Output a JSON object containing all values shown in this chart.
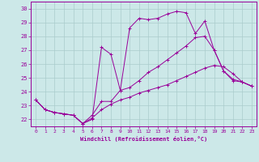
{
  "xlabel": "Windchill (Refroidissement éolien,°C)",
  "xlim": [
    -0.5,
    23.5
  ],
  "ylim": [
    21.5,
    30.5
  ],
  "yticks": [
    22,
    23,
    24,
    25,
    26,
    27,
    28,
    29,
    30
  ],
  "xticks": [
    0,
    1,
    2,
    3,
    4,
    5,
    6,
    7,
    8,
    9,
    10,
    11,
    12,
    13,
    14,
    15,
    16,
    17,
    18,
    19,
    20,
    21,
    22,
    23
  ],
  "bg_color": "#cce8e8",
  "line_color": "#990099",
  "grid_color": "#aacccc",
  "line1_x": [
    0,
    1,
    2,
    3,
    4,
    5,
    6,
    7,
    8,
    9,
    10,
    11,
    12,
    13,
    14,
    15,
    16,
    17,
    18,
    19,
    20,
    21,
    22,
    23
  ],
  "line1_y": [
    23.4,
    22.7,
    22.5,
    22.4,
    22.3,
    21.7,
    22.0,
    27.2,
    26.7,
    24.1,
    28.6,
    29.3,
    29.2,
    29.3,
    29.6,
    29.8,
    29.7,
    28.2,
    29.1,
    27.0,
    25.5,
    24.8,
    24.7,
    24.4
  ],
  "line2_x": [
    0,
    1,
    2,
    3,
    4,
    5,
    6,
    7,
    8,
    9,
    10,
    11,
    12,
    13,
    14,
    15,
    16,
    17,
    18,
    19,
    20,
    21,
    22,
    23
  ],
  "line2_y": [
    23.4,
    22.7,
    22.5,
    22.4,
    22.3,
    21.7,
    22.3,
    23.3,
    23.3,
    24.1,
    24.3,
    24.8,
    25.4,
    25.8,
    26.3,
    26.8,
    27.3,
    27.9,
    28.0,
    27.0,
    25.5,
    24.9,
    24.7,
    24.4
  ],
  "line3_x": [
    0,
    1,
    2,
    3,
    4,
    5,
    6,
    7,
    8,
    9,
    10,
    11,
    12,
    13,
    14,
    15,
    16,
    17,
    18,
    19,
    20,
    21,
    22,
    23
  ],
  "line3_y": [
    23.4,
    22.7,
    22.5,
    22.4,
    22.3,
    21.7,
    22.1,
    22.7,
    23.1,
    23.4,
    23.6,
    23.9,
    24.1,
    24.3,
    24.5,
    24.8,
    25.1,
    25.4,
    25.7,
    25.9,
    25.8,
    25.3,
    24.7,
    24.4
  ]
}
